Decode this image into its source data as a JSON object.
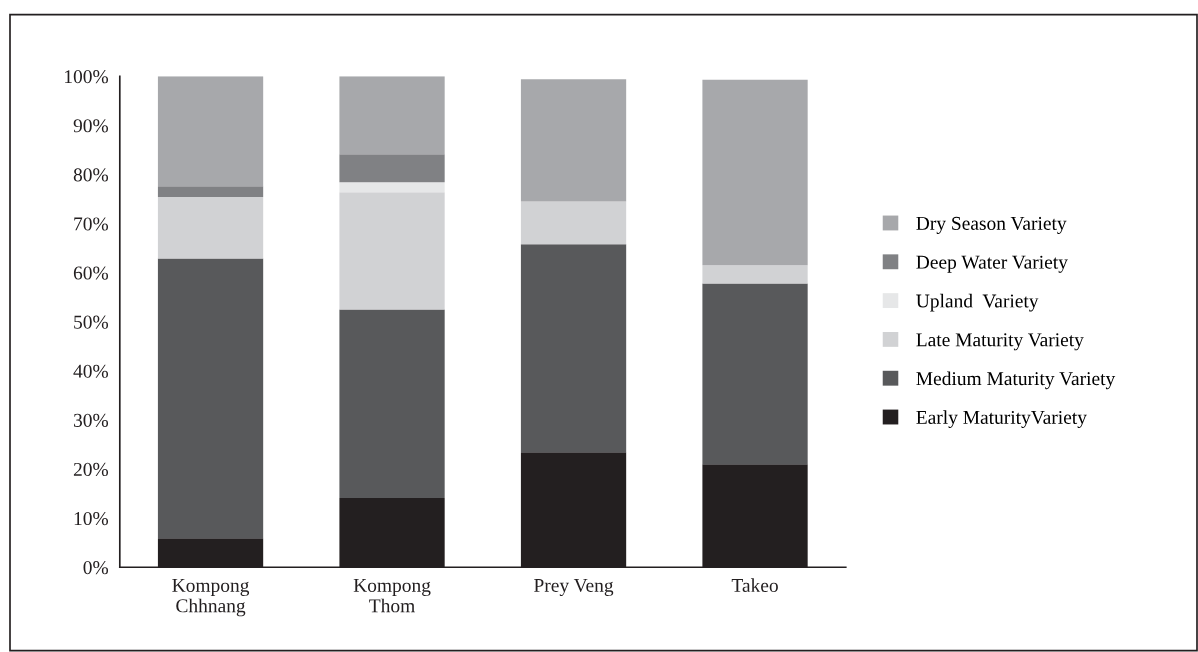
{
  "chart_data": {
    "type": "bar",
    "stacked": true,
    "categories": [
      "Kompong\nChhnang",
      "Kompong\nThom",
      "Prey Veng",
      "Takeo"
    ],
    "series": [
      {
        "name": "Early MaturityVariety",
        "color": "#231f20",
        "values": [
          5.9,
          14.1,
          23.4,
          21.0
        ]
      },
      {
        "name": "Medium Maturity Variety",
        "color": "#58595b",
        "values": [
          57.0,
          38.4,
          42.4,
          36.8
        ]
      },
      {
        "name": "Late Maturity Variety",
        "color": "#d1d2d4",
        "values": [
          12.5,
          23.9,
          8.7,
          3.7
        ]
      },
      {
        "name": "Upland  Variety",
        "color": "#e6e7e8",
        "values": [
          null,
          2.0,
          0,
          0
        ]
      },
      {
        "name": "Deep Water Variety",
        "color": "#808184",
        "values": [
          2.2,
          5.7,
          0,
          0
        ]
      },
      {
        "name": "Dry Season Variety",
        "color": "#a7a8ab",
        "values": [
          22.4,
          15.9,
          24.9,
          37.8
        ]
      }
    ],
    "ylim": [
      0,
      100
    ],
    "yticks": [
      {
        "value": 0,
        "label": "0%"
      },
      {
        "value": 10,
        "label": "10%"
      },
      {
        "value": 20,
        "label": "20%"
      },
      {
        "value": 30,
        "label": "30%"
      },
      {
        "value": 40,
        "label": "40%"
      },
      {
        "value": 50,
        "label": "50%"
      },
      {
        "value": 60,
        "label": "60%"
      },
      {
        "value": 70,
        "label": "70%"
      },
      {
        "value": 80,
        "label": "80%"
      },
      {
        "value": 90,
        "label": "90%"
      },
      {
        "value": 100,
        "label": "100%"
      }
    ],
    "grid": false,
    "legend": "right"
  }
}
